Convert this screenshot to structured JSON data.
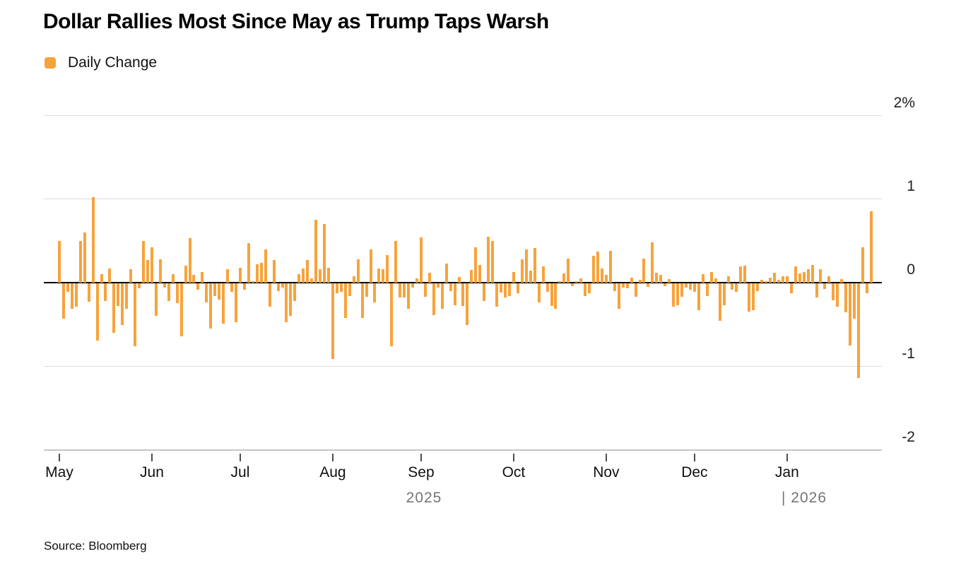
{
  "title": "Dollar Rallies Most Since May as Trump Taps Warsh",
  "legend": {
    "label": "Daily Change",
    "swatch_color": "#F7A33C"
  },
  "source": "Source: Bloomberg",
  "colors": {
    "bar": "#F7A33C",
    "gridline": "#dcdcdc",
    "zero_line": "#000000",
    "year_label": "#757575"
  },
  "chart_data": {
    "type": "bar",
    "title": "Dollar Rallies Most Since May as Trump Taps Warsh",
    "series_name": "Daily Change",
    "ylabel": "",
    "xlabel": "",
    "ylim": [
      -2,
      2
    ],
    "y_unit": "%",
    "y_ticks": [
      "2%",
      "1",
      "0",
      "-1",
      "-2"
    ],
    "y_tick_values": [
      2,
      1,
      0,
      -1,
      -2
    ],
    "grid": "horizontal",
    "legend_position": "top-left",
    "axis_side": "right",
    "months": [
      {
        "label": "May",
        "index": 0
      },
      {
        "label": "Jun",
        "index": 22
      },
      {
        "label": "Jul",
        "index": 43
      },
      {
        "label": "Aug",
        "index": 65
      },
      {
        "label": "Sep",
        "index": 86
      },
      {
        "label": "Oct",
        "index": 108
      },
      {
        "label": "Nov",
        "index": 130
      },
      {
        "label": "Dec",
        "index": 151
      },
      {
        "label": "Jan",
        "index": 173
      }
    ],
    "years": [
      {
        "label": "2025",
        "anchor_month": "Sep"
      },
      {
        "label": "| 2026",
        "anchor_month": "Jan"
      }
    ],
    "values": [
      0.5,
      -0.42,
      -0.1,
      -0.3,
      -0.28,
      0.5,
      0.6,
      -0.22,
      1.02,
      -0.68,
      0.1,
      -0.21,
      0.17,
      -0.59,
      -0.27,
      -0.5,
      -0.3,
      0.16,
      -0.75,
      -0.06,
      0.5,
      0.27,
      0.42,
      -0.39,
      0.28,
      -0.05,
      -0.21,
      0.1,
      -0.24,
      -0.63,
      0.2,
      0.53,
      0.09,
      -0.08,
      0.13,
      -0.23,
      -0.54,
      -0.15,
      -0.19,
      -0.48,
      0.16,
      -0.1,
      -0.46,
      0.18,
      -0.08,
      0.47,
      0.02,
      0.22,
      0.24,
      0.4,
      -0.28,
      0.27,
      -0.09,
      -0.05,
      -0.46,
      -0.39,
      -0.21,
      0.1,
      0.17,
      0.27,
      0.05,
      0.75,
      0.16,
      0.7,
      0.18,
      -0.9,
      -0.12,
      -0.1,
      -0.41,
      -0.15,
      0.08,
      0.28,
      -0.41,
      -0.16,
      0.4,
      -0.23,
      0.17,
      0.16,
      0.33,
      -0.75,
      0.5,
      -0.17,
      -0.17,
      -0.3,
      -0.05,
      0.05,
      0.54,
      -0.16,
      0.12,
      -0.38,
      -0.05,
      -0.3,
      0.23,
      -0.09,
      -0.26,
      0.07,
      -0.27,
      -0.5,
      0.15,
      0.42,
      0.21,
      -0.21,
      0.55,
      0.5,
      -0.28,
      -0.11,
      -0.17,
      -0.15,
      0.13,
      -0.12,
      0.28,
      0.4,
      0.14,
      0.41,
      -0.23,
      0.19,
      -0.1,
      -0.27,
      -0.3,
      0.02,
      0.11,
      0.29,
      -0.03,
      0.02,
      0.05,
      -0.15,
      -0.12,
      0.32,
      0.37,
      0.17,
      0.09,
      0.38,
      -0.09,
      -0.3,
      -0.05,
      -0.06,
      0.06,
      -0.16,
      0.03,
      0.29,
      -0.04,
      0.48,
      0.12,
      0.09,
      -0.03,
      0.04,
      -0.28,
      -0.26,
      -0.16,
      -0.05,
      -0.08,
      -0.1,
      -0.32,
      0.1,
      -0.15,
      0.13,
      0.05,
      -0.45,
      -0.26,
      0.08,
      -0.08,
      -0.1,
      0.19,
      0.2,
      -0.34,
      -0.32,
      -0.09,
      0.03,
      0.02,
      0.06,
      0.12,
      0.03,
      0.08,
      0.08,
      -0.12,
      0.19,
      0.11,
      0.13,
      0.16,
      0.21,
      -0.17,
      0.16,
      -0.07,
      0.08,
      -0.2,
      -0.28,
      0.04,
      -0.35,
      -0.74,
      -0.42,
      -1.13,
      0.42,
      -0.12,
      0.85
    ]
  }
}
